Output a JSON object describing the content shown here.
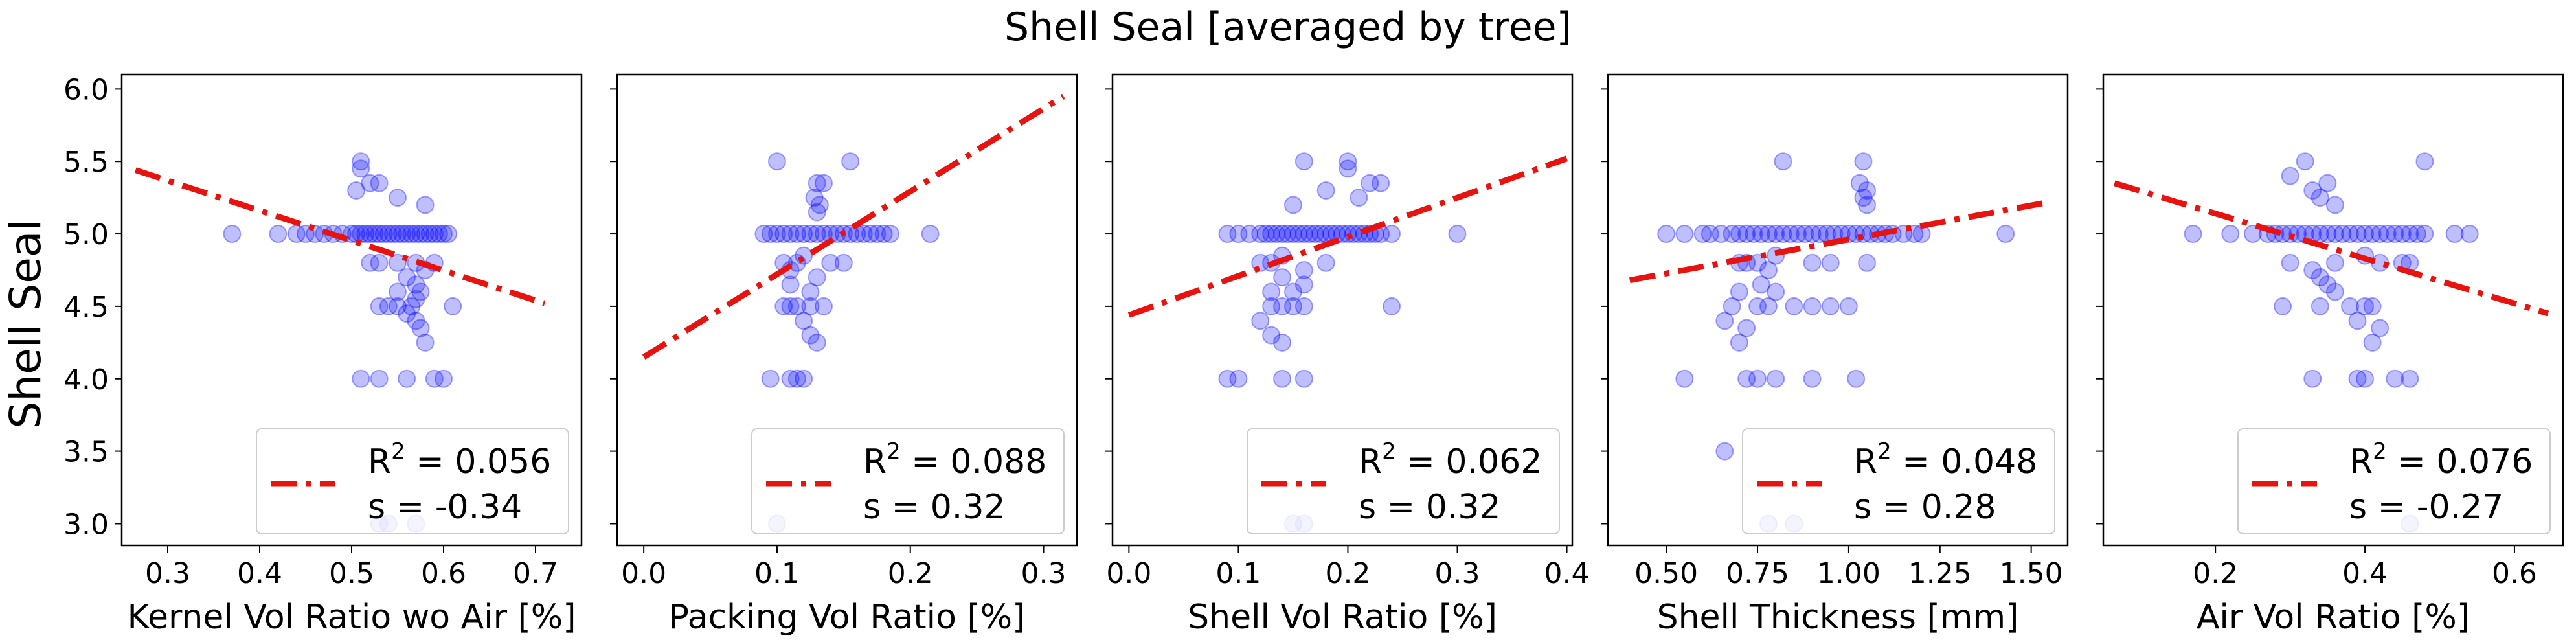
{
  "figure": {
    "suptitle": "Shell Seal [averaged by tree]",
    "ylabel": "Shell Seal"
  },
  "style": {
    "point_color": "#0000ff",
    "fit_color": "#e8130f",
    "point_alpha": 0.25
  },
  "chart_data": [
    {
      "type": "scatter",
      "xlabel": "Kernel Vol Ratio wo Air [%]",
      "ylabel": "Shell Seal",
      "xlim": [
        0.25,
        0.75
      ],
      "ylim": [
        2.85,
        6.1
      ],
      "xticks": [
        0.3,
        0.4,
        0.5,
        0.6,
        0.7
      ],
      "yticks": [
        3.0,
        3.5,
        4.0,
        4.5,
        5.0,
        5.5,
        6.0
      ],
      "legend": {
        "placement": "lower-right",
        "r2": "0.056",
        "s": "-0.34"
      },
      "fit": {
        "x": [
          0.265,
          0.71
        ],
        "y": [
          5.44,
          4.52
        ]
      },
      "points": {
        "y5": [
          0.37,
          0.42,
          0.44,
          0.45,
          0.46,
          0.47,
          0.48,
          0.49,
          0.5,
          0.505,
          0.51,
          0.515,
          0.52,
          0.525,
          0.53,
          0.535,
          0.54,
          0.545,
          0.55,
          0.555,
          0.56,
          0.565,
          0.57,
          0.575,
          0.58,
          0.585,
          0.59,
          0.595,
          0.6,
          0.605
        ],
        "other": [
          [
            0.51,
            5.5
          ],
          [
            0.51,
            5.45
          ],
          [
            0.52,
            5.35
          ],
          [
            0.53,
            5.35
          ],
          [
            0.505,
            5.3
          ],
          [
            0.55,
            5.25
          ],
          [
            0.58,
            5.2
          ],
          [
            0.53,
            4.8
          ],
          [
            0.52,
            4.8
          ],
          [
            0.55,
            4.8
          ],
          [
            0.57,
            4.8
          ],
          [
            0.58,
            4.75
          ],
          [
            0.59,
            4.8
          ],
          [
            0.56,
            4.7
          ],
          [
            0.55,
            4.6
          ],
          [
            0.57,
            4.65
          ],
          [
            0.575,
            4.6
          ],
          [
            0.57,
            4.55
          ],
          [
            0.53,
            4.5
          ],
          [
            0.54,
            4.5
          ],
          [
            0.55,
            4.5
          ],
          [
            0.565,
            4.5
          ],
          [
            0.56,
            4.45
          ],
          [
            0.61,
            4.5
          ],
          [
            0.57,
            4.4
          ],
          [
            0.575,
            4.35
          ],
          [
            0.58,
            4.25
          ],
          [
            0.51,
            4.0
          ],
          [
            0.53,
            4.0
          ],
          [
            0.56,
            4.0
          ],
          [
            0.59,
            4.0
          ],
          [
            0.6,
            4.0
          ],
          [
            0.53,
            3.0
          ],
          [
            0.54,
            3.0
          ],
          [
            0.57,
            3.0
          ]
        ]
      }
    },
    {
      "type": "scatter",
      "xlabel": "Packing Vol Ratio [%]",
      "xlim": [
        -0.02,
        0.325
      ],
      "ylim": [
        2.85,
        6.1
      ],
      "xticks": [
        0.0,
        0.1,
        0.2,
        0.3
      ],
      "xtick_labels": [
        "0.0",
        "0.1",
        "0.2",
        "0.3"
      ],
      "legend": {
        "placement": "lower-right",
        "r2": "0.088",
        "s": "0.32"
      },
      "fit": {
        "x": [
          0.0,
          0.315
        ],
        "y": [
          4.15,
          5.95
        ]
      },
      "points": {
        "y5": [
          0.09,
          0.095,
          0.1,
          0.105,
          0.11,
          0.115,
          0.12,
          0.125,
          0.13,
          0.135,
          0.14,
          0.145,
          0.15,
          0.155,
          0.16,
          0.165,
          0.17,
          0.175,
          0.18,
          0.185,
          0.215
        ],
        "other": [
          [
            0.1,
            5.5
          ],
          [
            0.155,
            5.5
          ],
          [
            0.13,
            5.35
          ],
          [
            0.135,
            5.35
          ],
          [
            0.128,
            5.25
          ],
          [
            0.132,
            5.2
          ],
          [
            0.13,
            5.15
          ],
          [
            0.105,
            4.8
          ],
          [
            0.115,
            4.8
          ],
          [
            0.12,
            4.85
          ],
          [
            0.14,
            4.8
          ],
          [
            0.15,
            4.8
          ],
          [
            0.11,
            4.75
          ],
          [
            0.11,
            4.65
          ],
          [
            0.125,
            4.6
          ],
          [
            0.13,
            4.7
          ],
          [
            0.11,
            4.5
          ],
          [
            0.115,
            4.5
          ],
          [
            0.125,
            4.5
          ],
          [
            0.135,
            4.5
          ],
          [
            0.105,
            4.5
          ],
          [
            0.12,
            4.4
          ],
          [
            0.125,
            4.3
          ],
          [
            0.13,
            4.25
          ],
          [
            0.095,
            4.0
          ],
          [
            0.11,
            4.0
          ],
          [
            0.115,
            4.0
          ],
          [
            0.12,
            4.0
          ],
          [
            0.1,
            3.0
          ]
        ]
      }
    },
    {
      "type": "scatter",
      "xlabel": "Shell Vol Ratio [%]",
      "xlim": [
        -0.015,
        0.405
      ],
      "ylim": [
        2.85,
        6.1
      ],
      "xticks": [
        0.0,
        0.1,
        0.2,
        0.3,
        0.4
      ],
      "xtick_labels": [
        "0.0",
        "0.1",
        "0.2",
        "0.3",
        "0.4"
      ],
      "legend": {
        "placement": "lower-right",
        "r2": "0.062",
        "s": "0.32"
      },
      "fit": {
        "x": [
          0.0,
          0.4
        ],
        "y": [
          4.44,
          5.52
        ]
      },
      "points": {
        "y5": [
          0.09,
          0.1,
          0.11,
          0.12,
          0.125,
          0.13,
          0.135,
          0.14,
          0.145,
          0.15,
          0.155,
          0.16,
          0.165,
          0.17,
          0.175,
          0.18,
          0.185,
          0.19,
          0.195,
          0.2,
          0.205,
          0.21,
          0.215,
          0.22,
          0.225,
          0.23,
          0.24,
          0.3
        ],
        "other": [
          [
            0.16,
            5.5
          ],
          [
            0.2,
            5.5
          ],
          [
            0.2,
            5.45
          ],
          [
            0.22,
            5.35
          ],
          [
            0.23,
            5.35
          ],
          [
            0.18,
            5.3
          ],
          [
            0.21,
            5.25
          ],
          [
            0.15,
            5.2
          ],
          [
            0.12,
            4.8
          ],
          [
            0.13,
            4.8
          ],
          [
            0.14,
            4.85
          ],
          [
            0.18,
            4.8
          ],
          [
            0.16,
            4.75
          ],
          [
            0.14,
            4.7
          ],
          [
            0.15,
            4.6
          ],
          [
            0.13,
            4.6
          ],
          [
            0.16,
            4.65
          ],
          [
            0.13,
            4.5
          ],
          [
            0.14,
            4.5
          ],
          [
            0.15,
            4.5
          ],
          [
            0.16,
            4.5
          ],
          [
            0.24,
            4.5
          ],
          [
            0.12,
            4.4
          ],
          [
            0.13,
            4.3
          ],
          [
            0.14,
            4.25
          ],
          [
            0.09,
            4.0
          ],
          [
            0.1,
            4.0
          ],
          [
            0.14,
            4.0
          ],
          [
            0.16,
            4.0
          ],
          [
            0.15,
            3.0
          ],
          [
            0.16,
            3.0
          ]
        ]
      }
    },
    {
      "type": "scatter",
      "xlabel": "Shell Thickness [mm]",
      "xlim": [
        0.34,
        1.6
      ],
      "ylim": [
        2.85,
        6.1
      ],
      "xticks": [
        0.5,
        0.75,
        1.0,
        1.25,
        1.5
      ],
      "xtick_labels": [
        "0.50",
        "0.75",
        "1.00",
        "1.25",
        "1.50"
      ],
      "legend": {
        "placement": "lower-right",
        "r2": "0.048",
        "s": "0.28"
      },
      "fit": {
        "x": [
          0.4,
          1.55
        ],
        "y": [
          4.68,
          5.22
        ]
      },
      "points": {
        "y5": [
          0.5,
          0.55,
          0.6,
          0.62,
          0.65,
          0.68,
          0.7,
          0.72,
          0.74,
          0.76,
          0.78,
          0.8,
          0.82,
          0.84,
          0.86,
          0.88,
          0.9,
          0.92,
          0.94,
          0.96,
          0.98,
          1.0,
          1.02,
          1.04,
          1.06,
          1.08,
          1.1,
          1.12,
          1.15,
          1.18,
          1.2,
          1.43
        ],
        "other": [
          [
            0.82,
            5.5
          ],
          [
            1.04,
            5.5
          ],
          [
            1.03,
            5.35
          ],
          [
            1.05,
            5.3
          ],
          [
            1.04,
            5.25
          ],
          [
            1.05,
            5.2
          ],
          [
            0.7,
            4.8
          ],
          [
            0.75,
            4.8
          ],
          [
            0.72,
            4.8
          ],
          [
            0.8,
            4.85
          ],
          [
            0.9,
            4.8
          ],
          [
            0.95,
            4.8
          ],
          [
            1.05,
            4.8
          ],
          [
            0.78,
            4.75
          ],
          [
            0.76,
            4.65
          ],
          [
            0.8,
            4.6
          ],
          [
            0.7,
            4.6
          ],
          [
            0.68,
            4.5
          ],
          [
            0.75,
            4.5
          ],
          [
            0.78,
            4.5
          ],
          [
            0.85,
            4.5
          ],
          [
            0.9,
            4.5
          ],
          [
            0.95,
            4.5
          ],
          [
            1.0,
            4.5
          ],
          [
            0.66,
            4.4
          ],
          [
            0.72,
            4.35
          ],
          [
            0.7,
            4.25
          ],
          [
            0.55,
            4.0
          ],
          [
            0.72,
            4.0
          ],
          [
            0.75,
            4.0
          ],
          [
            0.8,
            4.0
          ],
          [
            0.9,
            4.0
          ],
          [
            1.02,
            4.0
          ],
          [
            0.66,
            3.5
          ],
          [
            0.78,
            3.0
          ],
          [
            0.85,
            3.0
          ]
        ]
      }
    },
    {
      "type": "scatter",
      "xlabel": "Air Vol Ratio [%]",
      "xlim": [
        0.05,
        0.665
      ],
      "ylim": [
        2.85,
        6.1
      ],
      "xticks": [
        0.2,
        0.4,
        0.6
      ],
      "xtick_labels": [
        "0.2",
        "0.4",
        "0.6"
      ],
      "legend": {
        "placement": "lower-right",
        "r2": "0.076",
        "s": "-0.27"
      },
      "fit": {
        "x": [
          0.065,
          0.645
        ],
        "y": [
          5.35,
          4.45
        ]
      },
      "points": {
        "y5": [
          0.17,
          0.22,
          0.25,
          0.27,
          0.28,
          0.29,
          0.3,
          0.31,
          0.32,
          0.33,
          0.34,
          0.35,
          0.36,
          0.37,
          0.38,
          0.39,
          0.4,
          0.41,
          0.42,
          0.43,
          0.44,
          0.45,
          0.46,
          0.47,
          0.48,
          0.52,
          0.54
        ],
        "other": [
          [
            0.32,
            5.5
          ],
          [
            0.48,
            5.5
          ],
          [
            0.3,
            5.4
          ],
          [
            0.35,
            5.35
          ],
          [
            0.33,
            5.3
          ],
          [
            0.34,
            5.25
          ],
          [
            0.36,
            5.2
          ],
          [
            0.3,
            4.8
          ],
          [
            0.36,
            4.8
          ],
          [
            0.4,
            4.85
          ],
          [
            0.42,
            4.8
          ],
          [
            0.45,
            4.8
          ],
          [
            0.46,
            4.8
          ],
          [
            0.33,
            4.75
          ],
          [
            0.35,
            4.65
          ],
          [
            0.36,
            4.6
          ],
          [
            0.34,
            4.7
          ],
          [
            0.29,
            4.5
          ],
          [
            0.34,
            4.5
          ],
          [
            0.38,
            4.5
          ],
          [
            0.4,
            4.5
          ],
          [
            0.41,
            4.5
          ],
          [
            0.39,
            4.4
          ],
          [
            0.42,
            4.35
          ],
          [
            0.41,
            4.25
          ],
          [
            0.33,
            4.0
          ],
          [
            0.39,
            4.0
          ],
          [
            0.4,
            4.0
          ],
          [
            0.44,
            4.0
          ],
          [
            0.46,
            4.0
          ],
          [
            0.46,
            3.0
          ]
        ]
      }
    }
  ]
}
